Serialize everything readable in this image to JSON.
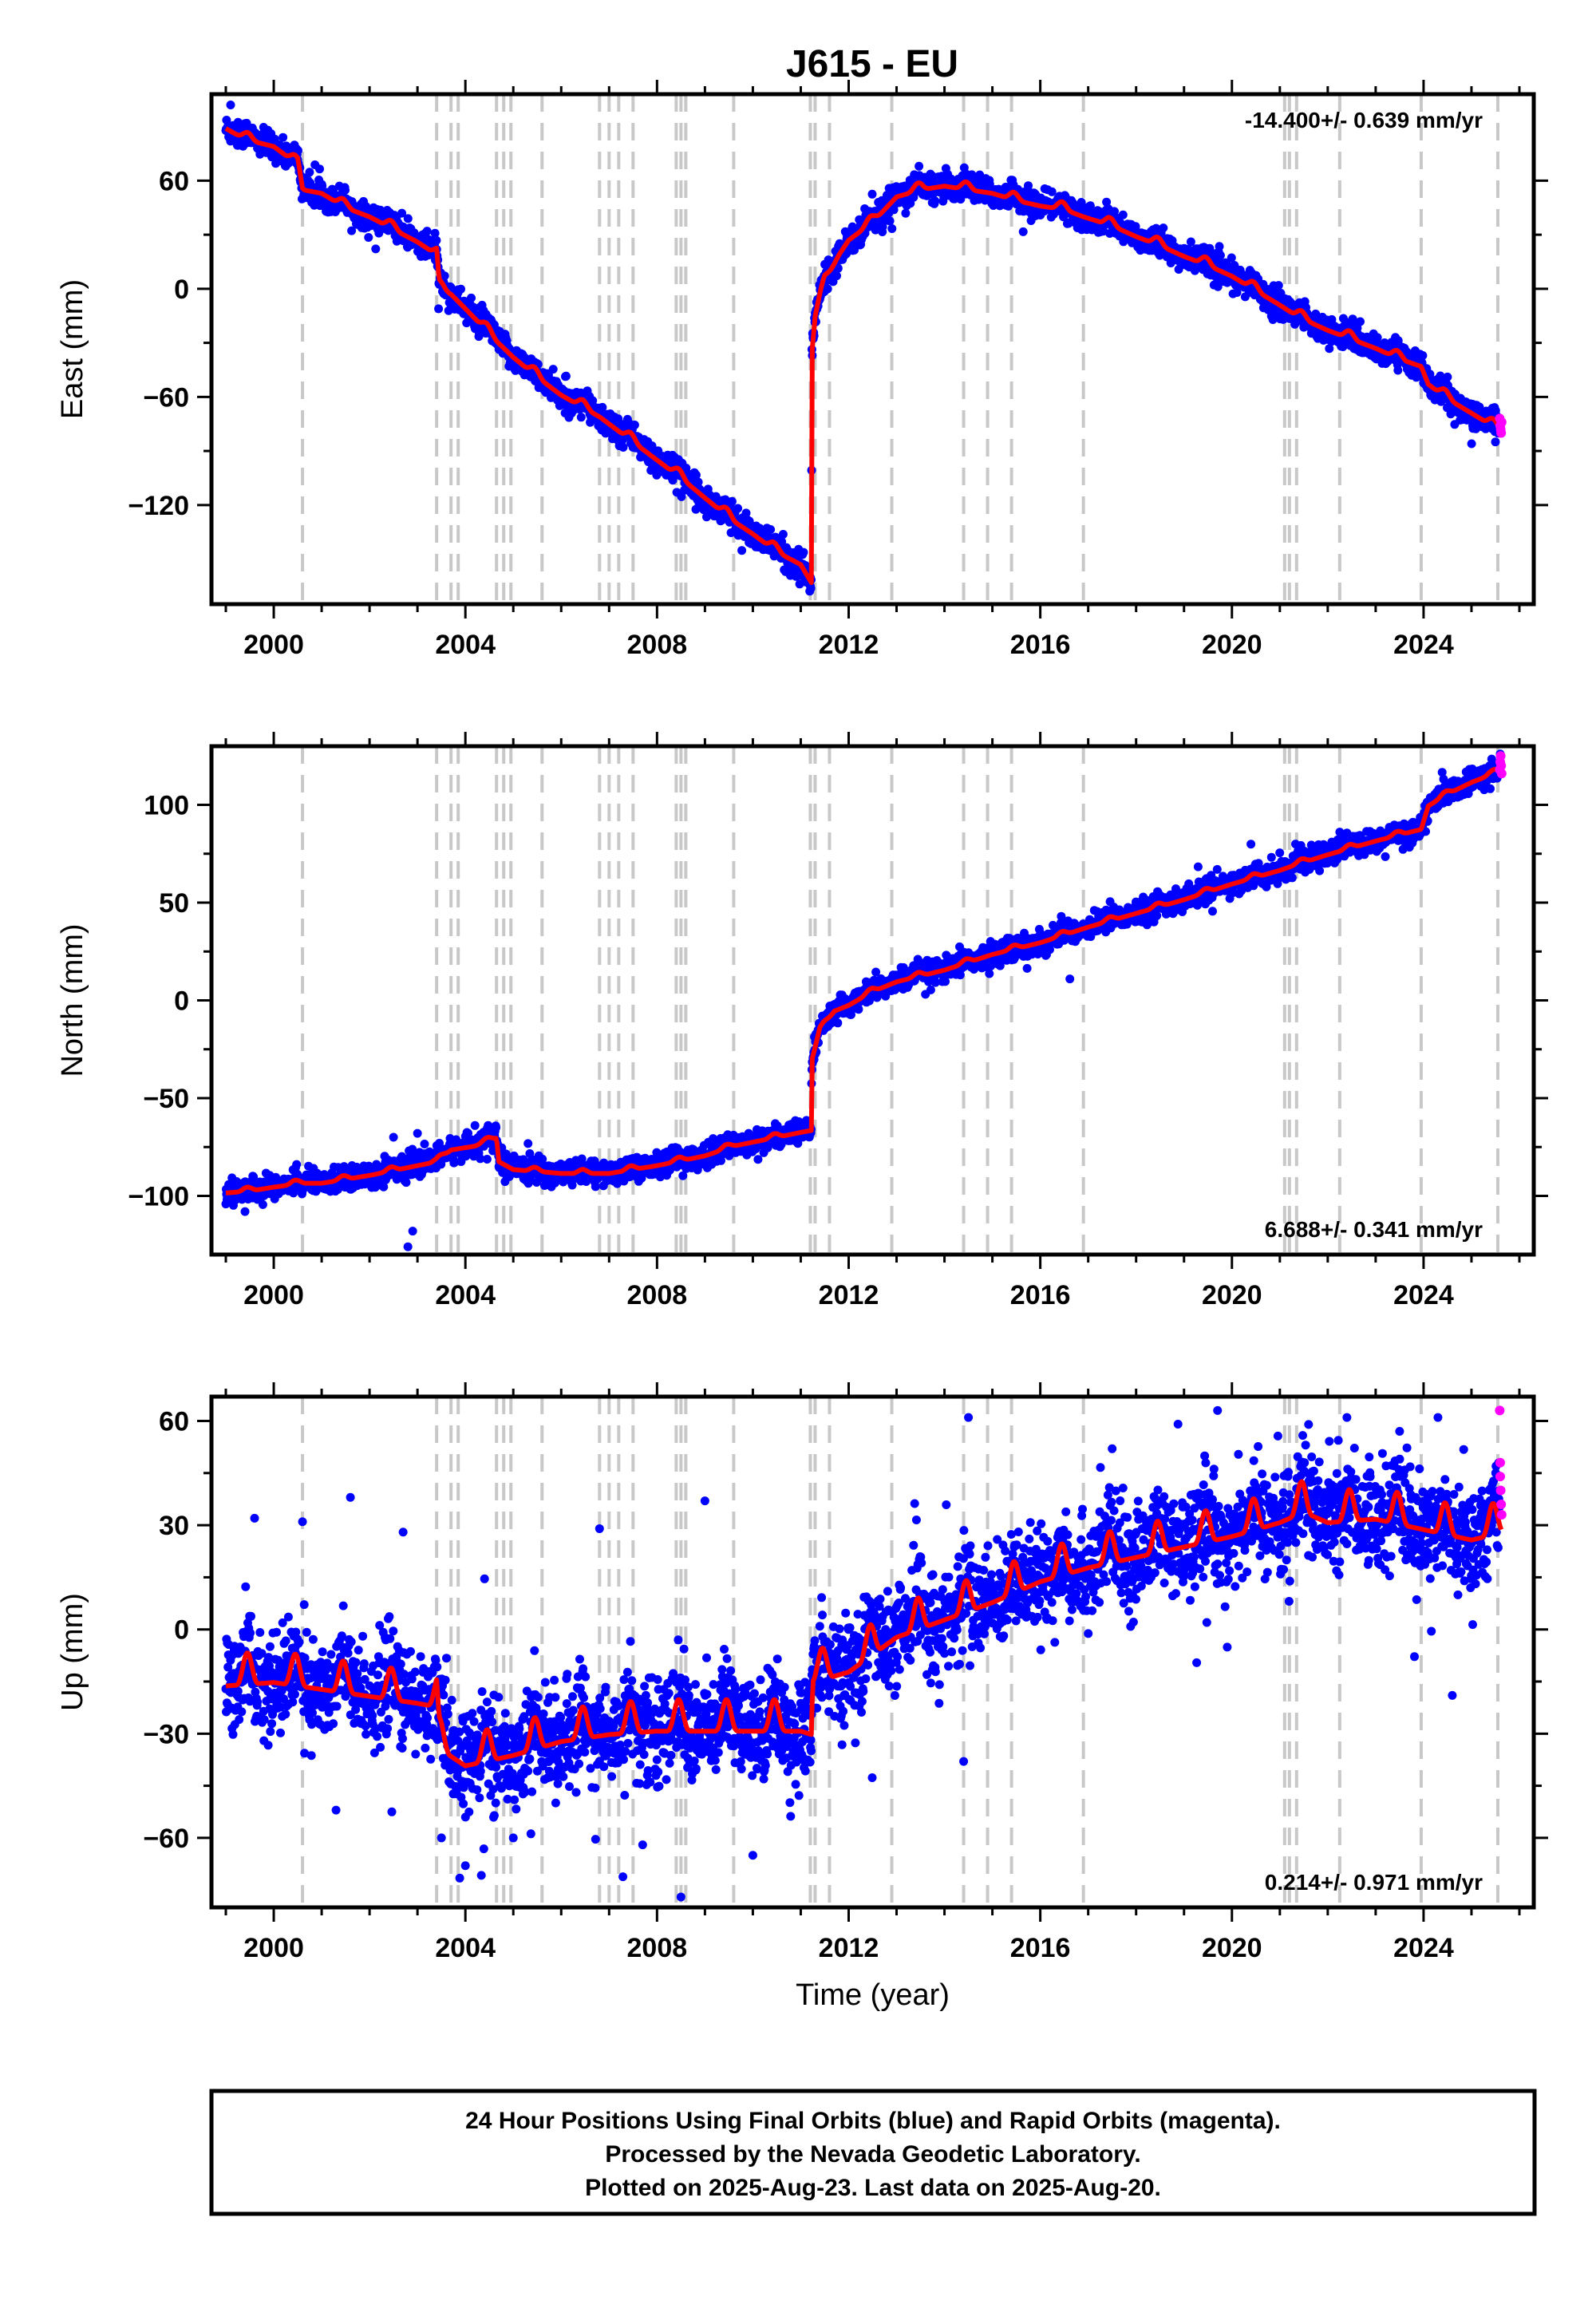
{
  "title": "J615 - EU",
  "colors": {
    "final_orbits": "#0000ff",
    "rapid_orbits": "#ff00ff",
    "model": "#ff0000",
    "steps": "#c8c8c8",
    "frame": "#000000"
  },
  "footer": {
    "line1": "24 Hour Positions Using Final Orbits (blue) and Rapid Orbits (magenta).",
    "line2": "Processed by the Nevada Geodetic Laboratory.",
    "line3": "Plotted on 2025-Aug-23. Last data on 2025-Aug-20."
  },
  "chart_data": [
    {
      "type": "scatter",
      "ylabel": "East (mm)",
      "xlabel": "",
      "xlim": [
        1998.7,
        2026.3
      ],
      "ylim": [
        -175,
        108
      ],
      "xticks": [
        2000,
        2004,
        2008,
        2012,
        2016,
        2020,
        2024
      ],
      "yticks": [
        60,
        0,
        -60,
        -120
      ],
      "rate": "-14.400+/- 0.639 mm/yr",
      "rate_position": "top-right",
      "events": [
        2000.6,
        2003.4,
        2003.7,
        2003.85,
        2004.65,
        2004.8,
        2004.95,
        2005.6,
        2006.8,
        2007.0,
        2007.2,
        2007.5,
        2008.4,
        2008.5,
        2008.6,
        2009.6,
        2011.2,
        2011.3,
        2011.6,
        2012.9,
        2014.4,
        2014.9,
        2015.4,
        2016.9,
        2021.1,
        2021.2,
        2021.35,
        2022.25,
        2023.95,
        2025.55
      ],
      "model": [
        [
          1999.0,
          90
        ],
        [
          1999.4,
          84
        ],
        [
          2000.0,
          80
        ],
        [
          2000.5,
          70
        ],
        [
          2000.6,
          56
        ],
        [
          2001.0,
          54
        ],
        [
          2001.5,
          46
        ],
        [
          2002.0,
          41
        ],
        [
          2002.5,
          34
        ],
        [
          2003.0,
          27
        ],
        [
          2003.4,
          20
        ],
        [
          2003.45,
          2
        ],
        [
          2003.7,
          -2
        ],
        [
          2004.0,
          -10
        ],
        [
          2004.65,
          -28
        ],
        [
          2005.0,
          -37
        ],
        [
          2005.6,
          -50
        ],
        [
          2006.0,
          -58
        ],
        [
          2006.8,
          -70
        ],
        [
          2007.2,
          -78
        ],
        [
          2007.5,
          -84
        ],
        [
          2008.0,
          -94
        ],
        [
          2008.5,
          -104
        ],
        [
          2009.0,
          -115
        ],
        [
          2009.6,
          -128
        ],
        [
          2010.0,
          -135
        ],
        [
          2010.5,
          -145
        ],
        [
          2011.0,
          -152
        ],
        [
          2011.22,
          -162
        ],
        [
          2011.23,
          -35
        ],
        [
          2011.3,
          -15
        ],
        [
          2011.5,
          5
        ],
        [
          2011.8,
          20
        ],
        [
          2012.0,
          28
        ],
        [
          2012.5,
          38
        ],
        [
          2013.0,
          52
        ],
        [
          2013.5,
          56
        ],
        [
          2014.0,
          58
        ],
        [
          2014.5,
          56
        ],
        [
          2015.0,
          54
        ],
        [
          2015.5,
          50
        ],
        [
          2016.0,
          47
        ],
        [
          2016.5,
          45
        ],
        [
          2016.9,
          41
        ],
        [
          2017.5,
          36
        ],
        [
          2018.0,
          30
        ],
        [
          2018.5,
          25
        ],
        [
          2019.0,
          19
        ],
        [
          2019.5,
          14
        ],
        [
          2020.0,
          8
        ],
        [
          2020.5,
          0
        ],
        [
          2021.0,
          -8
        ],
        [
          2021.35,
          -14
        ],
        [
          2021.5,
          -16
        ],
        [
          2022.0,
          -22
        ],
        [
          2022.5,
          -27
        ],
        [
          2023.0,
          -32
        ],
        [
          2023.5,
          -38
        ],
        [
          2023.95,
          -42
        ],
        [
          2024.1,
          -52
        ],
        [
          2024.5,
          -60
        ],
        [
          2025.0,
          -68
        ],
        [
          2025.62,
          -78
        ]
      ],
      "seasonal_amplitude": 3,
      "scatter_noise": 3.5,
      "outliers": [
        [
          2011.2,
          -165
        ],
        [
          2003.2,
          32
        ],
        [
          1999.1,
          102
        ],
        [
          2013.4,
          62
        ],
        [
          2025.5,
          -85
        ]
      ],
      "rapid_points": [
        [
          2025.59,
          -72
        ],
        [
          2025.6,
          -76
        ],
        [
          2025.61,
          -78
        ],
        [
          2025.62,
          -80
        ],
        [
          2025.63,
          -74
        ]
      ]
    },
    {
      "type": "scatter",
      "ylabel": "North (mm)",
      "xlabel": "",
      "xlim": [
        1998.7,
        2026.3
      ],
      "ylim": [
        -130,
        130
      ],
      "xticks": [
        2000,
        2004,
        2008,
        2012,
        2016,
        2020,
        2024
      ],
      "yticks": [
        100,
        50,
        0,
        -50,
        -100
      ],
      "rate": "6.688+/- 0.341 mm/yr",
      "rate_position": "bottom-right",
      "events": [
        2000.6,
        2003.4,
        2003.7,
        2003.85,
        2004.65,
        2004.8,
        2004.95,
        2005.6,
        2006.8,
        2007.0,
        2007.2,
        2007.5,
        2008.4,
        2008.5,
        2008.6,
        2009.6,
        2011.2,
        2011.3,
        2011.6,
        2012.9,
        2014.4,
        2014.9,
        2015.4,
        2016.9,
        2021.1,
        2021.2,
        2021.35,
        2022.25,
        2023.95,
        2025.55
      ],
      "model": [
        [
          1999.0,
          -98
        ],
        [
          1999.5,
          -97
        ],
        [
          2000.0,
          -95
        ],
        [
          2000.6,
          -93
        ],
        [
          2001.0,
          -93
        ],
        [
          2002.0,
          -89
        ],
        [
          2003.0,
          -84
        ],
        [
          2003.4,
          -82
        ],
        [
          2003.7,
          -76
        ],
        [
          2004.2,
          -74
        ],
        [
          2004.65,
          -70
        ],
        [
          2004.7,
          -82
        ],
        [
          2005.0,
          -86
        ],
        [
          2006.0,
          -88
        ],
        [
          2007.0,
          -88
        ],
        [
          2008.0,
          -84
        ],
        [
          2009.0,
          -79
        ],
        [
          2009.6,
          -74
        ],
        [
          2010.0,
          -72
        ],
        [
          2011.0,
          -67
        ],
        [
          2011.22,
          -66
        ],
        [
          2011.23,
          -30
        ],
        [
          2011.4,
          -15
        ],
        [
          2011.7,
          -5
        ],
        [
          2012.0,
          -2
        ],
        [
          2012.5,
          5
        ],
        [
          2013.0,
          10
        ],
        [
          2014.0,
          16
        ],
        [
          2015.0,
          24
        ],
        [
          2016.0,
          30
        ],
        [
          2017.0,
          38
        ],
        [
          2018.0,
          45
        ],
        [
          2019.0,
          52
        ],
        [
          2020.0,
          60
        ],
        [
          2021.0,
          67
        ],
        [
          2021.35,
          70
        ],
        [
          2022.0,
          75
        ],
        [
          2023.0,
          82
        ],
        [
          2023.95,
          88
        ],
        [
          2024.1,
          100
        ],
        [
          2024.5,
          106
        ],
        [
          2025.0,
          112
        ],
        [
          2025.62,
          118
        ]
      ],
      "seasonal_amplitude": 1.5,
      "scatter_noise": 2.8,
      "outliers": [
        [
          2002.8,
          -126
        ],
        [
          2002.9,
          -118
        ],
        [
          2002.5,
          -70
        ],
        [
          2003.0,
          -68
        ],
        [
          2004.2,
          -64
        ],
        [
          1999.4,
          -108
        ],
        [
          2025.6,
          126
        ]
      ],
      "rapid_points": [
        [
          2025.59,
          118
        ],
        [
          2025.6,
          122
        ],
        [
          2025.61,
          125
        ],
        [
          2025.62,
          120
        ],
        [
          2025.63,
          116
        ]
      ]
    },
    {
      "type": "scatter",
      "ylabel": "Up (mm)",
      "xlabel": "Time (year)",
      "xlim": [
        1998.7,
        2026.3
      ],
      "ylim": [
        -80,
        67
      ],
      "xticks": [
        2000,
        2004,
        2008,
        2012,
        2016,
        2020,
        2024
      ],
      "yticks": [
        60,
        30,
        0,
        -30,
        -60
      ],
      "rate": "0.214+/- 0.971 mm/yr",
      "rate_position": "bottom-right",
      "events": [
        2000.6,
        2003.4,
        2003.7,
        2003.85,
        2004.65,
        2004.8,
        2004.95,
        2005.6,
        2006.8,
        2007.0,
        2007.2,
        2007.5,
        2008.4,
        2008.5,
        2008.6,
        2009.6,
        2011.2,
        2011.3,
        2011.6,
        2012.9,
        2014.4,
        2014.9,
        2015.4,
        2016.9,
        2021.1,
        2021.2,
        2021.35,
        2022.25,
        2023.95,
        2025.55
      ],
      "model": [
        [
          1999.0,
          -14
        ],
        [
          2000.0,
          -13
        ],
        [
          2001.0,
          -15
        ],
        [
          2002.0,
          -17
        ],
        [
          2003.0,
          -19
        ],
        [
          2003.4,
          -20
        ],
        [
          2003.45,
          -32
        ],
        [
          2004.0,
          -37
        ],
        [
          2005.0,
          -34
        ],
        [
          2006.0,
          -30
        ],
        [
          2007.0,
          -28
        ],
        [
          2008.0,
          -27
        ],
        [
          2009.0,
          -27
        ],
        [
          2010.0,
          -27
        ],
        [
          2011.0,
          -27
        ],
        [
          2011.22,
          -28
        ],
        [
          2011.25,
          -13
        ],
        [
          2012.0,
          -10
        ],
        [
          2013.0,
          0
        ],
        [
          2014.0,
          5
        ],
        [
          2015.0,
          10
        ],
        [
          2016.0,
          16
        ],
        [
          2017.0,
          20
        ],
        [
          2018.0,
          23
        ],
        [
          2019.0,
          26
        ],
        [
          2020.0,
          29
        ],
        [
          2021.0,
          33
        ],
        [
          2021.5,
          36
        ],
        [
          2022.0,
          33
        ],
        [
          2023.0,
          34
        ],
        [
          2024.0,
          31
        ],
        [
          2025.0,
          28
        ],
        [
          2025.62,
          30
        ]
      ],
      "seasonal_amplitude": 6.5,
      "scatter_noise": 7,
      "outliers": [
        [
          1999.6,
          32
        ],
        [
          2000.6,
          31
        ],
        [
          2001.6,
          38
        ],
        [
          2001.3,
          -52
        ],
        [
          2006.8,
          29
        ],
        [
          2008.5,
          -77
        ],
        [
          2014.5,
          61
        ],
        [
          2014.4,
          -38
        ],
        [
          2019.7,
          63
        ],
        [
          2017.5,
          52
        ],
        [
          2022.4,
          61
        ],
        [
          2024.3,
          61
        ],
        [
          2024.6,
          -19
        ],
        [
          2002.7,
          28
        ],
        [
          2003.5,
          -60
        ],
        [
          2004.0,
          -68
        ],
        [
          2005.0,
          -60
        ],
        [
          2007.7,
          -62
        ],
        [
          2009.0,
          37
        ],
        [
          2010.0,
          -65
        ],
        [
          2021.6,
          59
        ],
        [
          2023.5,
          57
        ],
        [
          2025.59,
          63
        ]
      ],
      "rapid_points": [
        [
          2025.59,
          63
        ],
        [
          2025.6,
          48
        ],
        [
          2025.6,
          44
        ],
        [
          2025.61,
          40
        ],
        [
          2025.62,
          36
        ],
        [
          2025.63,
          33
        ]
      ]
    }
  ]
}
